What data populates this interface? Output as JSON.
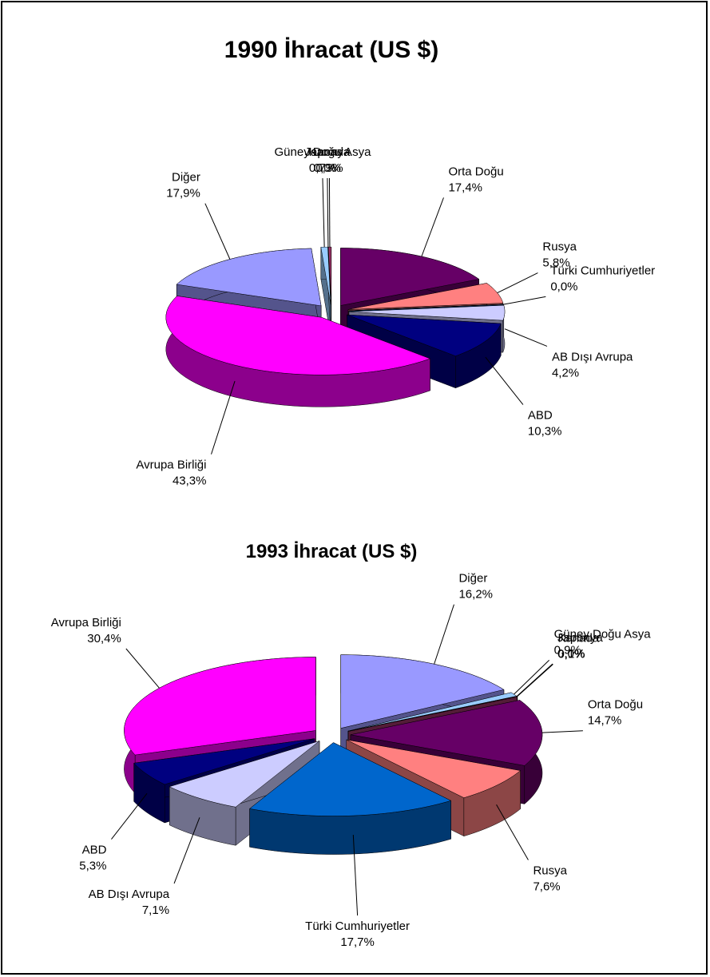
{
  "chart_data": [
    {
      "type": "pie3d",
      "title": "1990 İhracat (US $)",
      "categories": [
        "Orta Doğu",
        "Rusya",
        "Türki Cumhuriyetler",
        "AB Dışı Avrupa",
        "ABD",
        "Avrupa Birliği",
        "Diğer",
        "Güney Doğu Asya",
        "Japonya",
        "Kanada"
      ],
      "values": [
        17.4,
        5.8,
        0.0,
        4.2,
        10.3,
        43.3,
        17.9,
        0.7,
        0.0,
        0.3
      ],
      "value_labels": [
        "17,4%",
        "5,8%",
        "0,0%",
        "4,2%",
        "10,3%",
        "43,3%",
        "17,9%",
        "0,7%",
        "0,0%",
        "0,3%"
      ],
      "colors": [
        "#660066",
        "#ff8080",
        "#0066cc",
        "#ccccff",
        "#000080",
        "#ff00ff",
        "#9999ff",
        "#99ccff",
        "#669999",
        "#993366"
      ]
    },
    {
      "type": "pie3d",
      "title": "1993 İhracat (US $)",
      "categories": [
        "Diğer",
        "Güney Doğu Asya",
        "Japonya",
        "Kanada",
        "Orta Doğu",
        "Rusya",
        "Türki Cumhuriyetler",
        "AB Dışı Avrupa",
        "ABD",
        "Avrupa Birliği"
      ],
      "values": [
        16.2,
        0.9,
        0.0,
        0.1,
        14.7,
        7.6,
        17.7,
        7.1,
        5.3,
        30.4
      ],
      "value_labels": [
        "16,2%",
        "0,9%",
        "0,0%",
        "0,1%",
        "14,7%",
        "7,6%",
        "17,7%",
        "7,1%",
        "5,3%",
        "30,4%"
      ],
      "colors": [
        "#9999ff",
        "#99ccff",
        "#669999",
        "#993366",
        "#660066",
        "#ff8080",
        "#0066cc",
        "#ccccff",
        "#000080",
        "#ff00ff"
      ]
    }
  ]
}
